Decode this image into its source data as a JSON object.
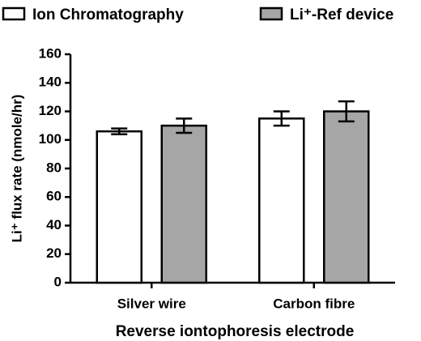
{
  "chart_data": {
    "type": "bar",
    "y_label": "Li⁺ flux rate (nmole/hr)",
    "x_label": "Reverse iontophoresis electrode",
    "categories": [
      "Silver wire",
      "Carbon fibre"
    ],
    "series": [
      {
        "name": "Ion Chromatography",
        "color": "#ffffff",
        "values": [
          106,
          115
        ],
        "errors": [
          2,
          5
        ]
      },
      {
        "name": "Li⁺-Ref device",
        "color": "#a6a6a6",
        "values": [
          110,
          120
        ],
        "errors": [
          5,
          7
        ]
      }
    ],
    "ylim": [
      0,
      160
    ],
    "yticks": [
      0,
      20,
      40,
      60,
      80,
      100,
      120,
      140,
      160
    ],
    "grid": false
  }
}
